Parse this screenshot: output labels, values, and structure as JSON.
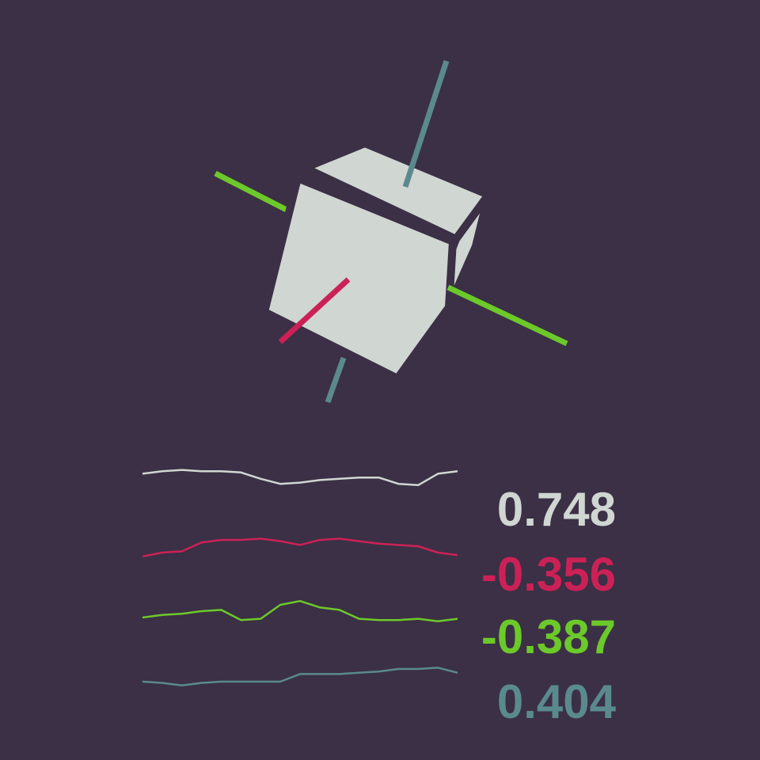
{
  "colors": {
    "background": "#3b3045",
    "cube_face": "#d0d6d2",
    "cube_edge": "#3b3045",
    "w": "#d0d6d2",
    "x": "#cc2156",
    "y": "#6cc92a",
    "z": "#5a8a8e"
  },
  "quaternion": {
    "components": [
      {
        "key": "w",
        "text": "0.748",
        "value": 0.748,
        "color": "#d0d6d2",
        "trace": [
          0.62,
          0.66,
          0.68,
          0.66,
          0.66,
          0.64,
          0.54,
          0.46,
          0.48,
          0.52,
          0.54,
          0.56,
          0.56,
          0.46,
          0.44,
          0.62,
          0.66
        ]
      },
      {
        "key": "x",
        "text": "-0.356",
        "value": -0.356,
        "color": "#cc2156",
        "trace": [
          0.34,
          0.4,
          0.42,
          0.56,
          0.6,
          0.6,
          0.62,
          0.58,
          0.52,
          0.6,
          0.62,
          0.58,
          0.54,
          0.52,
          0.5,
          0.4,
          0.36
        ]
      },
      {
        "key": "y",
        "text": "-0.387",
        "value": -0.387,
        "color": "#6cc92a",
        "trace": [
          0.4,
          0.44,
          0.46,
          0.5,
          0.52,
          0.36,
          0.38,
          0.6,
          0.66,
          0.56,
          0.52,
          0.38,
          0.36,
          0.36,
          0.38,
          0.34,
          0.38
        ]
      },
      {
        "key": "z",
        "text": "0.404",
        "value": 0.404,
        "color": "#5a8a8e",
        "trace": [
          0.4,
          0.38,
          0.34,
          0.38,
          0.4,
          0.4,
          0.4,
          0.4,
          0.52,
          0.52,
          0.52,
          0.54,
          0.56,
          0.6,
          0.6,
          0.62,
          0.54
        ]
      }
    ]
  }
}
